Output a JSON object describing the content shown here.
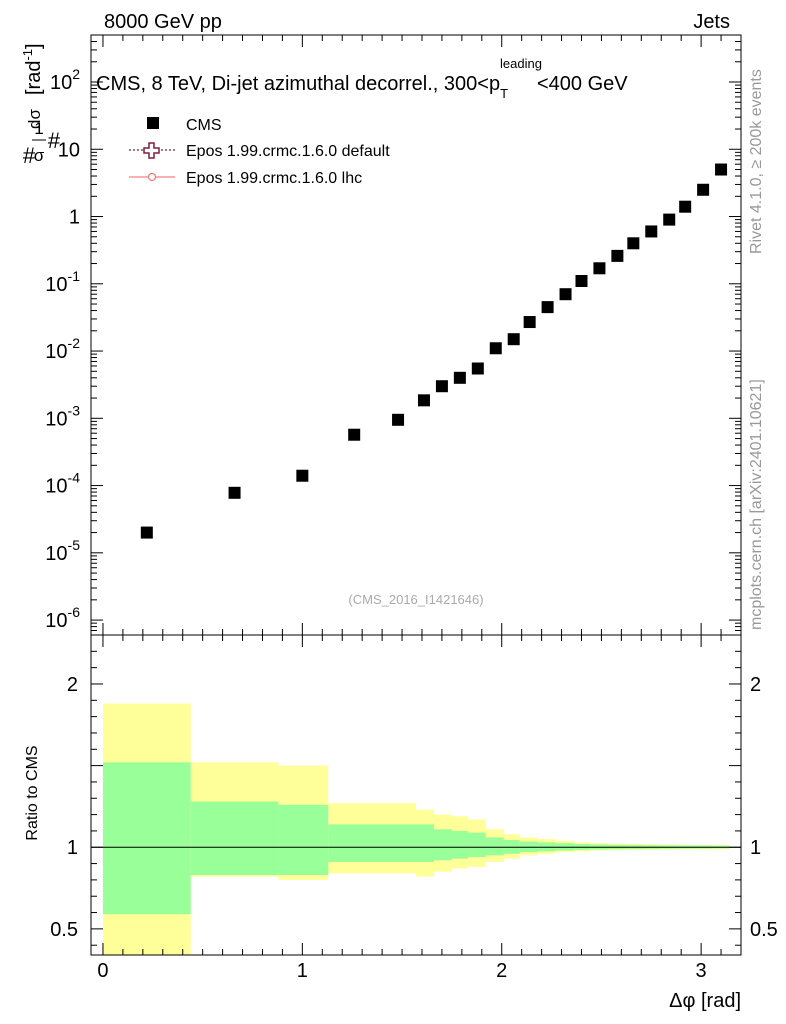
{
  "header": {
    "left": "8000 GeV pp",
    "right": "Jets"
  },
  "side_labels": {
    "rivet": "Rivet 4.1.0, ≥ 200k events",
    "mcplots": "mcplots.cern.ch [arXiv:2401.10621]"
  },
  "chart_data": [
    {
      "type": "scatter",
      "panel": "main",
      "title": "CMS, 8 TeV, Di-jet azimuthal decorrel., 300<p_T^leading<400 GeV",
      "title_main": "CMS, 8 TeV, Di-jet azimuthal decorrel., 300<p",
      "title_sub": "T",
      "title_sup": "leading",
      "title_end": "<400 GeV",
      "analysis_id": "(CMS_2016_I1421646)",
      "ylabel": "1/σ dσ/dΔφ [rad⁻¹]",
      "ylabel_parts": {
        "num_left": "1",
        "den_left": "σ",
        "num_right": "dσ",
        "den_right": "dΔφ",
        "unit": "[rad",
        "unit_sup": "-1",
        "unit_end": "]"
      },
      "yscale": "log",
      "ylim": [
        6e-07,
        500
      ],
      "xlim": [
        -0.06,
        3.2
      ],
      "y_ticks": [
        {
          "v": 1e-06,
          "base": "10",
          "exp": "-6"
        },
        {
          "v": 1e-05,
          "base": "10",
          "exp": "-5"
        },
        {
          "v": 0.0001,
          "base": "10",
          "exp": "-4"
        },
        {
          "v": 0.001,
          "base": "10",
          "exp": "-3"
        },
        {
          "v": 0.01,
          "base": "10",
          "exp": "-2"
        },
        {
          "v": 0.1,
          "base": "10",
          "exp": "-1"
        },
        {
          "v": 1,
          "base": "1",
          "exp": ""
        },
        {
          "v": 10,
          "base": "10",
          "exp": ""
        },
        {
          "v": 100,
          "base": "10",
          "exp": "2"
        }
      ],
      "legend": [
        {
          "name": "CMS",
          "style": "square"
        },
        {
          "name": "Epos 1.99.crmc.1.6.0 default",
          "style": "open-cross-dotted",
          "color": "#7b1f3f"
        },
        {
          "name": "Epos 1.99.crmc.1.6.0 lhc",
          "style": "open-circle-line",
          "color": "#f08080"
        }
      ],
      "series": [
        {
          "name": "CMS",
          "x": [
            0.22,
            0.66,
            1.0,
            1.26,
            1.48,
            1.61,
            1.7,
            1.79,
            1.88,
            1.97,
            2.06,
            2.14,
            2.23,
            2.32,
            2.4,
            2.49,
            2.58,
            2.66,
            2.75,
            2.84,
            2.92,
            3.01,
            3.1
          ],
          "values": [
            2e-05,
            7.8e-05,
            0.00014,
            0.00057,
            0.00095,
            0.00185,
            0.003,
            0.004,
            0.0055,
            0.011,
            0.015,
            0.027,
            0.045,
            0.07,
            0.11,
            0.17,
            0.26,
            0.4,
            0.6,
            0.9,
            1.4,
            2.5,
            5.0
          ]
        }
      ]
    },
    {
      "type": "area",
      "panel": "ratio",
      "ylabel": "Ratio to CMS",
      "xlabel": "Δφ [rad]",
      "xlim": [
        -0.06,
        3.2
      ],
      "ylim": [
        0.34,
        2.3
      ],
      "x_ticks": [
        0,
        1,
        2,
        3
      ],
      "y_ticks": [
        0.5,
        1,
        2
      ],
      "reference_line": 1.0,
      "bands": [
        {
          "name": "CMS uncertainty (outer)",
          "color": "#ffff99",
          "bins": [
            {
              "x0": 0.0,
              "x1": 0.44,
              "lo": 0.34,
              "hi": 1.88
            },
            {
              "x0": 0.44,
              "x1": 0.88,
              "lo": 0.82,
              "hi": 1.52
            },
            {
              "x0": 0.88,
              "x1": 1.13,
              "lo": 0.8,
              "hi": 1.5
            },
            {
              "x0": 1.13,
              "x1": 1.57,
              "lo": 0.84,
              "hi": 1.27
            },
            {
              "x0": 1.57,
              "x1": 1.66,
              "lo": 0.82,
              "hi": 1.23
            },
            {
              "x0": 1.66,
              "x1": 1.75,
              "lo": 0.85,
              "hi": 1.2
            },
            {
              "x0": 1.75,
              "x1": 1.83,
              "lo": 0.87,
              "hi": 1.19
            },
            {
              "x0": 1.83,
              "x1": 1.92,
              "lo": 0.88,
              "hi": 1.17
            },
            {
              "x0": 1.92,
              "x1": 2.01,
              "lo": 0.91,
              "hi": 1.11
            },
            {
              "x0": 2.01,
              "x1": 2.09,
              "lo": 0.93,
              "hi": 1.08
            },
            {
              "x0": 2.09,
              "x1": 2.18,
              "lo": 0.95,
              "hi": 1.06
            },
            {
              "x0": 2.18,
              "x1": 2.27,
              "lo": 0.96,
              "hi": 1.05
            },
            {
              "x0": 2.27,
              "x1": 2.36,
              "lo": 0.97,
              "hi": 1.04
            },
            {
              "x0": 2.36,
              "x1": 2.44,
              "lo": 0.975,
              "hi": 1.03
            },
            {
              "x0": 2.44,
              "x1": 2.53,
              "lo": 0.98,
              "hi": 1.025
            },
            {
              "x0": 2.53,
              "x1": 2.62,
              "lo": 0.982,
              "hi": 1.022
            },
            {
              "x0": 2.62,
              "x1": 2.71,
              "lo": 0.984,
              "hi": 1.02
            },
            {
              "x0": 2.71,
              "x1": 2.79,
              "lo": 0.985,
              "hi": 1.018
            },
            {
              "x0": 2.79,
              "x1": 2.88,
              "lo": 0.986,
              "hi": 1.016
            },
            {
              "x0": 2.88,
              "x1": 2.97,
              "lo": 0.987,
              "hi": 1.015
            },
            {
              "x0": 2.97,
              "x1": 3.05,
              "lo": 0.988,
              "hi": 1.014
            },
            {
              "x0": 3.05,
              "x1": 3.14,
              "lo": 0.988,
              "hi": 1.014
            }
          ]
        },
        {
          "name": "CMS uncertainty (inner)",
          "color": "#99ff99",
          "bins": [
            {
              "x0": 0.0,
              "x1": 0.44,
              "lo": 0.59,
              "hi": 1.52
            },
            {
              "x0": 0.44,
              "x1": 0.88,
              "lo": 0.83,
              "hi": 1.28
            },
            {
              "x0": 0.88,
              "x1": 1.13,
              "lo": 0.83,
              "hi": 1.26
            },
            {
              "x0": 1.13,
              "x1": 1.57,
              "lo": 0.91,
              "hi": 1.14
            },
            {
              "x0": 1.57,
              "x1": 1.66,
              "lo": 0.91,
              "hi": 1.14
            },
            {
              "x0": 1.66,
              "x1": 1.75,
              "lo": 0.92,
              "hi": 1.11
            },
            {
              "x0": 1.75,
              "x1": 1.83,
              "lo": 0.93,
              "hi": 1.1
            },
            {
              "x0": 1.83,
              "x1": 1.92,
              "lo": 0.94,
              "hi": 1.09
            },
            {
              "x0": 1.92,
              "x1": 2.01,
              "lo": 0.95,
              "hi": 1.06
            },
            {
              "x0": 2.01,
              "x1": 2.09,
              "lo": 0.96,
              "hi": 1.045
            },
            {
              "x0": 2.09,
              "x1": 2.18,
              "lo": 0.97,
              "hi": 1.035
            },
            {
              "x0": 2.18,
              "x1": 2.27,
              "lo": 0.975,
              "hi": 1.03
            },
            {
              "x0": 2.27,
              "x1": 2.36,
              "lo": 0.98,
              "hi": 1.025
            },
            {
              "x0": 2.36,
              "x1": 2.44,
              "lo": 0.984,
              "hi": 1.02
            },
            {
              "x0": 2.44,
              "x1": 2.53,
              "lo": 0.986,
              "hi": 1.017
            },
            {
              "x0": 2.53,
              "x1": 2.62,
              "lo": 0.988,
              "hi": 1.015
            },
            {
              "x0": 2.62,
              "x1": 2.71,
              "lo": 0.989,
              "hi": 1.013
            },
            {
              "x0": 2.71,
              "x1": 2.79,
              "lo": 0.99,
              "hi": 1.012
            },
            {
              "x0": 2.79,
              "x1": 2.88,
              "lo": 0.991,
              "hi": 1.011
            },
            {
              "x0": 2.88,
              "x1": 2.97,
              "lo": 0.992,
              "hi": 1.01
            },
            {
              "x0": 2.97,
              "x1": 3.05,
              "lo": 0.992,
              "hi": 1.01
            },
            {
              "x0": 3.05,
              "x1": 3.14,
              "lo": 0.993,
              "hi": 1.009
            }
          ]
        }
      ]
    }
  ]
}
